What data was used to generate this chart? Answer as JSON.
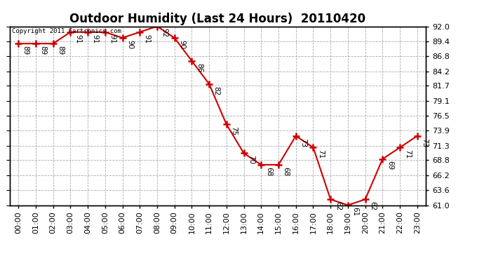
{
  "title": "Outdoor Humidity (Last 24 Hours)  20110420",
  "copyright_text": "Copyright 2011 Cartronics.com",
  "hours": [
    0,
    1,
    2,
    3,
    4,
    5,
    6,
    7,
    8,
    9,
    10,
    11,
    12,
    13,
    14,
    15,
    16,
    17,
    18,
    19,
    20,
    21,
    22,
    23
  ],
  "values": [
    89,
    89,
    89,
    91,
    91,
    91,
    90,
    91,
    92,
    90,
    86,
    82,
    75,
    70,
    68,
    68,
    73,
    71,
    62,
    61,
    62,
    69,
    71,
    73
  ],
  "ylim": [
    61.0,
    92.0
  ],
  "yticks": [
    61.0,
    63.6,
    66.2,
    68.8,
    71.3,
    73.9,
    76.5,
    79.1,
    81.7,
    84.2,
    86.8,
    89.4,
    92.0
  ],
  "line_color": "#cc0000",
  "marker_color": "#cc0000",
  "bg_color": "#ffffff",
  "plot_bg_color": "#ffffff",
  "grid_color": "#aaaaaa",
  "title_fontsize": 12,
  "tick_fontsize": 8,
  "annotation_fontsize": 7.5
}
